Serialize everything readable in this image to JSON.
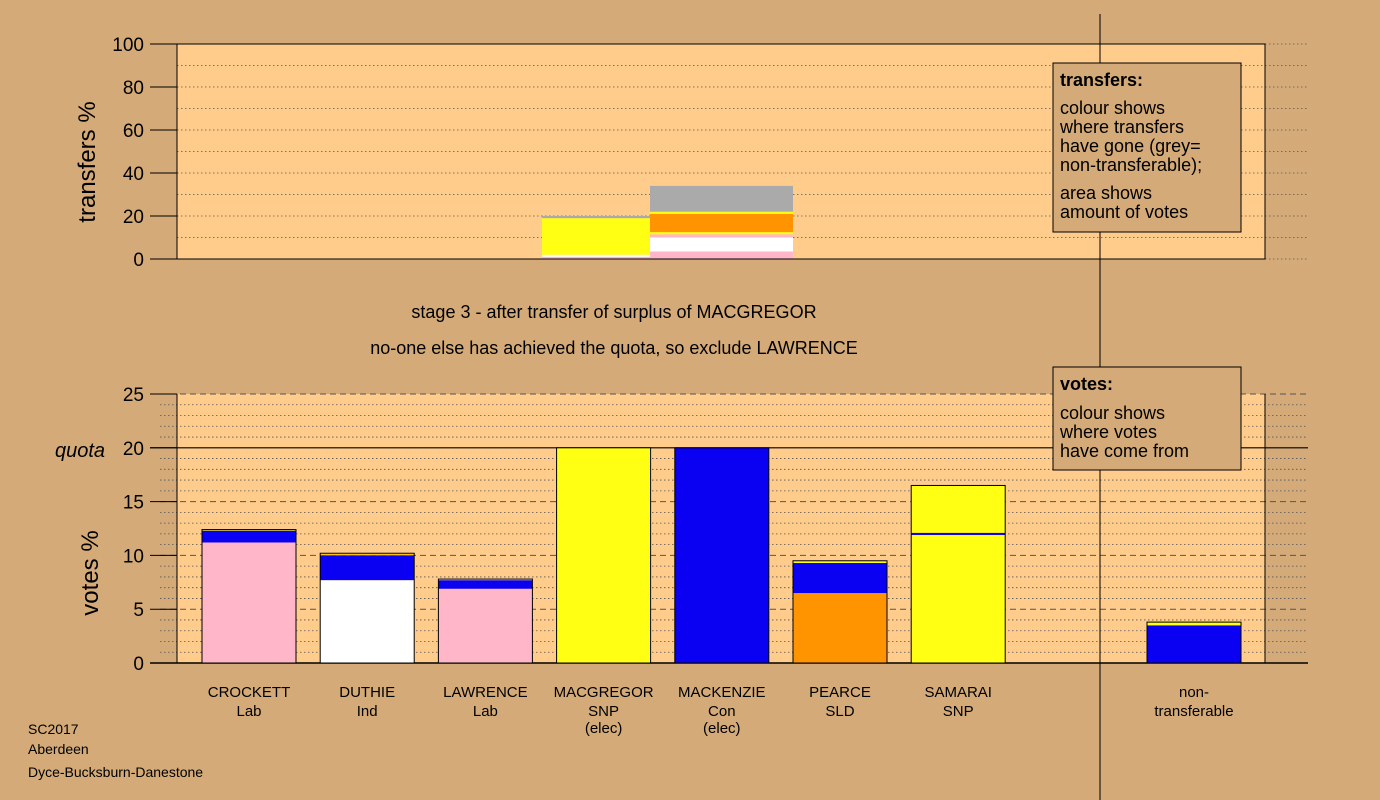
{
  "footer": {
    "line1": "SC2017",
    "line2": "Aberdeen",
    "line3": "Dyce-Bucksburn-Danestone"
  },
  "stage": {
    "line1": "stage 3 - after transfer of surplus of MACGREGOR",
    "line2": "no-one else has achieved the quota, so exclude LAWRENCE"
  },
  "legend_transfers": {
    "title": "transfers:",
    "lines": [
      "colour shows",
      "where transfers",
      "have gone (grey=",
      "non-transferable);",
      "area shows",
      "amount of votes"
    ]
  },
  "legend_votes": {
    "title": "votes:",
    "lines": [
      "colour shows",
      "where votes",
      "have come from"
    ]
  },
  "colors": {
    "background": "#d4aa78",
    "plot_area": "#ffcc8c",
    "Lab": "#ffb6c8",
    "Ind": "#ffffff",
    "SNP": "#ffff14",
    "Con": "#0a00f2",
    "SLD": "#ff9400",
    "non_transferable": "#aaaaaa"
  },
  "chart_data": [
    {
      "type": "bar",
      "ylabel": "transfers %",
      "ylim": [
        0,
        100
      ],
      "yticks": [
        "0",
        "20",
        "40",
        "60",
        "80",
        "100"
      ],
      "grid": true,
      "legend_placement": "top-right",
      "transfer_blocks": [
        {
          "from": "MACGREGOR",
          "segments": [
            {
              "to": "Lab",
              "value": 1.0
            },
            {
              "to": "Ind",
              "value": 1.0
            },
            {
              "to": "SNP",
              "value": 17.0
            },
            {
              "to": "non-transferable",
              "value": 1.0
            }
          ]
        },
        {
          "from": "MACKENZIE",
          "segments": [
            {
              "to": "Lab",
              "value": 3.5
            },
            {
              "to": "Ind",
              "value": 6.5
            },
            {
              "to": "Lab",
              "value": 1.5
            },
            {
              "to": "SNP",
              "value": 1.0
            },
            {
              "to": "SLD",
              "value": 8.5
            },
            {
              "to": "SNP",
              "value": 1.0
            },
            {
              "to": "non-transferable",
              "value": 12.0
            }
          ]
        }
      ]
    },
    {
      "type": "bar",
      "ylabel": "votes %",
      "ylim": [
        0,
        25
      ],
      "yticks": [
        "0",
        "5",
        "10",
        "15",
        "20",
        "25"
      ],
      "quota": 20,
      "quota_label": "quota",
      "grid": true,
      "legend_placement": "top-right",
      "categories": [
        {
          "name": "CROCKETT",
          "party": "Lab",
          "note": ""
        },
        {
          "name": "DUTHIE",
          "party": "Ind",
          "note": ""
        },
        {
          "name": "LAWRENCE",
          "party": "Lab",
          "note": ""
        },
        {
          "name": "MACGREGOR",
          "party": "SNP",
          "note": "(elec)"
        },
        {
          "name": "MACKENZIE",
          "party": "Con",
          "note": "(elec)"
        },
        {
          "name": "PEARCE",
          "party": "SLD",
          "note": ""
        },
        {
          "name": "SAMARAI",
          "party": "SNP",
          "note": ""
        }
      ],
      "nontransferable_label": [
        "non-",
        "transferable"
      ],
      "stacks": [
        [
          {
            "from": "Lab",
            "value": 11.2
          },
          {
            "from": "Con",
            "value": 1.1
          },
          {
            "from": "SNP",
            "value": 0.1
          }
        ],
        [
          {
            "from": "Ind",
            "value": 7.7
          },
          {
            "from": "Con",
            "value": 2.3
          },
          {
            "from": "SLD",
            "value": 0.1
          },
          {
            "from": "SNP",
            "value": 0.1
          }
        ],
        [
          {
            "from": "Lab",
            "value": 6.9
          },
          {
            "from": "Con",
            "value": 0.8
          },
          {
            "from": "SNP",
            "value": 0.1
          }
        ],
        [
          {
            "from": "SNP",
            "value": 20.0
          }
        ],
        [
          {
            "from": "Con",
            "value": 20.0
          }
        ],
        [
          {
            "from": "SLD",
            "value": 6.5
          },
          {
            "from": "Con",
            "value": 2.8
          },
          {
            "from": "SNP",
            "value": 0.2
          }
        ],
        [
          {
            "from": "SNP",
            "value": 11.9
          },
          {
            "from": "Con",
            "value": 0.2
          },
          {
            "from": "SNP",
            "value": 4.4
          }
        ]
      ],
      "nontransferable_stack": [
        {
          "from": "Con",
          "value": 3.5
        },
        {
          "from": "SNP",
          "value": 0.3
        }
      ]
    }
  ]
}
